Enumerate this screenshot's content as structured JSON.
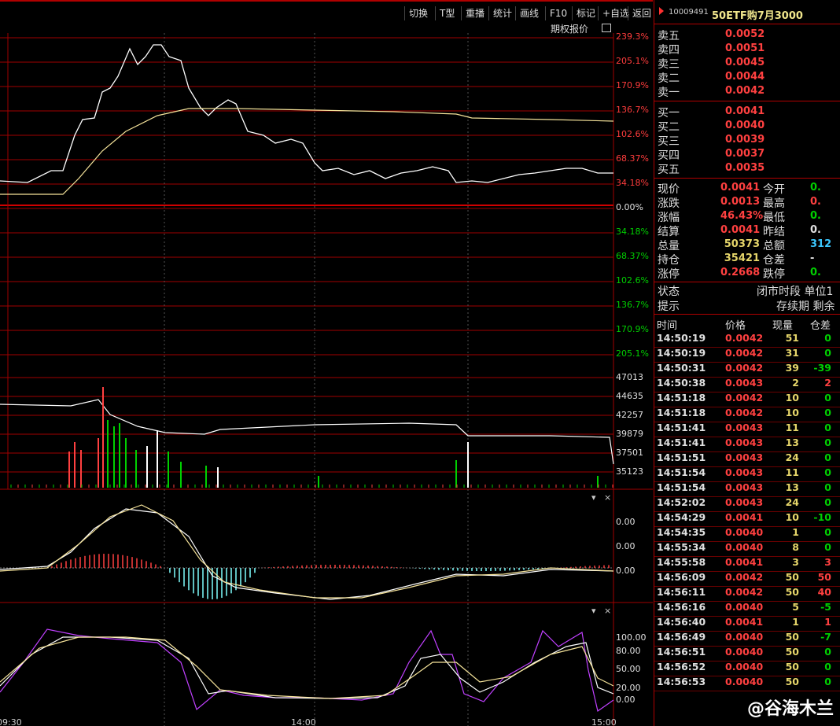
{
  "toolbar": {
    "buttons": [
      "切换",
      "T型",
      "重播",
      "统计",
      "画线",
      "F10",
      "标记",
      "+自选",
      "返回"
    ]
  },
  "chart": {
    "option_label": "期权报价",
    "price_pct_labels": [
      {
        "text": "239.3%",
        "color": "red"
      },
      {
        "text": "205.1%",
        "color": "red"
      },
      {
        "text": "170.9%",
        "color": "red"
      },
      {
        "text": "136.7%",
        "color": "red"
      },
      {
        "text": "102.6%",
        "color": "red"
      },
      {
        "text": "68.37%",
        "color": "red"
      },
      {
        "text": "34.18%",
        "color": "red"
      },
      {
        "text": "0.00%",
        "color": "white"
      },
      {
        "text": "34.18%",
        "color": "green"
      },
      {
        "text": "68.37%",
        "color": "green"
      },
      {
        "text": "102.6%",
        "color": "green"
      },
      {
        "text": "136.7%",
        "color": "green"
      },
      {
        "text": "170.9%",
        "color": "green"
      },
      {
        "text": "205.1%",
        "color": "green"
      }
    ],
    "volume_labels": [
      "47013",
      "44635",
      "42257",
      "39879",
      "37501",
      "35123"
    ],
    "macd_labels": [
      "0.00",
      "0.00",
      "0.00"
    ],
    "kdj_labels": [
      "100.00",
      "80.00",
      "50.00",
      "20.00",
      "0.00"
    ],
    "time_labels": [
      "09:30",
      "14:00",
      "15:00"
    ]
  },
  "panel": {
    "code": "10009491",
    "name": "50ETF购7月3000",
    "asks": [
      {
        "label": "卖五",
        "price": "0.0052"
      },
      {
        "label": "卖四",
        "price": "0.0051"
      },
      {
        "label": "卖三",
        "price": "0.0045"
      },
      {
        "label": "卖二",
        "price": "0.0044"
      },
      {
        "label": "卖一",
        "price": "0.0042"
      }
    ],
    "bids": [
      {
        "label": "买一",
        "price": "0.0041"
      },
      {
        "label": "买二",
        "price": "0.0040"
      },
      {
        "label": "买三",
        "price": "0.0039"
      },
      {
        "label": "买四",
        "price": "0.0037"
      },
      {
        "label": "买五",
        "price": "0.0035"
      }
    ],
    "stats": [
      {
        "label": "现价",
        "value": "0.0041",
        "label2": "今开",
        "value2": "0."
      },
      {
        "label": "涨跌",
        "value": "0.0013",
        "label2": "最高",
        "value2": "0."
      },
      {
        "label": "涨幅",
        "value": "46.43%",
        "label2": "最低",
        "value2": "0."
      },
      {
        "label": "结算",
        "value": "0.0041",
        "label2": "昨结",
        "value2": "0."
      },
      {
        "label": "总量",
        "value": "50373",
        "label2": "总额",
        "value2": "312"
      },
      {
        "label": "持仓",
        "value": "35421",
        "label2": "仓差",
        "value2": "-"
      },
      {
        "label": "涨停",
        "value": "0.2668",
        "label2": "跌停",
        "value2": "0."
      }
    ],
    "status_label": "状态",
    "status_value": "闭市时段 单位1",
    "hint_label": "提示",
    "hint_value": "存续期 剩余",
    "tick_headers": [
      "时间",
      "价格",
      "现量",
      "仓差"
    ],
    "ticks": [
      {
        "time": "14:50:19",
        "price": "0.0042",
        "vol": "51",
        "diff": "0"
      },
      {
        "time": "14:50:19",
        "price": "0.0042",
        "vol": "31",
        "diff": "0"
      },
      {
        "time": "14:50:31",
        "price": "0.0042",
        "vol": "39",
        "diff": "-39"
      },
      {
        "time": "14:50:38",
        "price": "0.0043",
        "vol": "2",
        "diff": "2"
      },
      {
        "time": "14:51:18",
        "price": "0.0042",
        "vol": "10",
        "diff": "0"
      },
      {
        "time": "14:51:18",
        "price": "0.0042",
        "vol": "10",
        "diff": "0"
      },
      {
        "time": "14:51:41",
        "price": "0.0043",
        "vol": "11",
        "diff": "0"
      },
      {
        "time": "14:51:41",
        "price": "0.0043",
        "vol": "13",
        "diff": "0"
      },
      {
        "time": "14:51:51",
        "price": "0.0043",
        "vol": "24",
        "diff": "0"
      },
      {
        "time": "14:51:54",
        "price": "0.0043",
        "vol": "11",
        "diff": "0"
      },
      {
        "time": "14:51:54",
        "price": "0.0043",
        "vol": "13",
        "diff": "0"
      },
      {
        "time": "14:52:02",
        "price": "0.0043",
        "vol": "24",
        "diff": "0"
      },
      {
        "time": "14:54:29",
        "price": "0.0041",
        "vol": "10",
        "diff": "-10"
      },
      {
        "time": "14:54:35",
        "price": "0.0040",
        "vol": "1",
        "diff": "0"
      },
      {
        "time": "14:55:34",
        "price": "0.0040",
        "vol": "8",
        "diff": "0"
      },
      {
        "time": "14:55:58",
        "price": "0.0041",
        "vol": "3",
        "diff": "3"
      },
      {
        "time": "14:56:09",
        "price": "0.0042",
        "vol": "50",
        "diff": "50"
      },
      {
        "time": "14:56:11",
        "price": "0.0042",
        "vol": "50",
        "diff": "40"
      },
      {
        "time": "14:56:16",
        "price": "0.0040",
        "vol": "5",
        "diff": "-5"
      },
      {
        "time": "14:56:40",
        "price": "0.0041",
        "vol": "1",
        "diff": "1"
      },
      {
        "time": "14:56:49",
        "price": "0.0040",
        "vol": "50",
        "diff": "-7"
      },
      {
        "time": "14:56:51",
        "price": "0.0040",
        "vol": "50",
        "diff": "0"
      },
      {
        "time": "14:56:52",
        "price": "0.0040",
        "vol": "50",
        "diff": "0"
      },
      {
        "time": "14:56:53",
        "price": "0.0040",
        "vol": "50",
        "diff": "0"
      }
    ],
    "watermark": "@谷海木兰"
  }
}
